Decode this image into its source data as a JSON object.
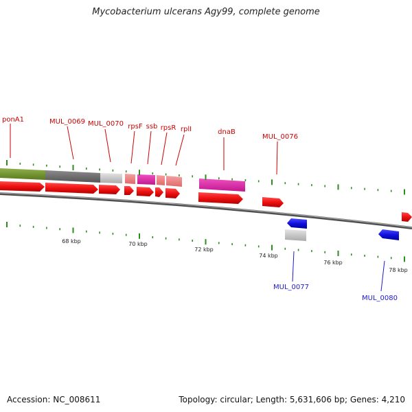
{
  "title": "Mycobacterium ulcerans Agy99, complete genome",
  "footer": {
    "accession": "Accession: NC_008611",
    "summary": "Topology: circular; Length: 5,631,606 bp; Genes: 4,210"
  },
  "colors": {
    "backbone": "#7a7a7a",
    "tick": "#2e8b22",
    "forward_label": "#cc0000",
    "reverse_label": "#1a1acc",
    "gene_forward": "#ee1111",
    "gene_reverse": "#1111dd",
    "cds_green": "#6f8f2a",
    "cds_dark": "#6a6a6a",
    "cds_light": "#c8c8c8",
    "cds_pink": "#e020a8",
    "cds_salmon": "#f08080"
  },
  "axis_labels": [
    "68 kbp",
    "70 kbp",
    "72 kbp",
    "74 kbp",
    "76 kbp",
    "78 kbp"
  ],
  "gene_labels_forward": [
    "ponA1",
    "MUL_0069",
    "MUL_0070",
    "rpsF",
    "ssb",
    "rpsR",
    "rplI",
    "dnaB",
    "MUL_0076"
  ],
  "gene_labels_reverse": [
    "MUL_0077",
    "MUL_0080"
  ]
}
